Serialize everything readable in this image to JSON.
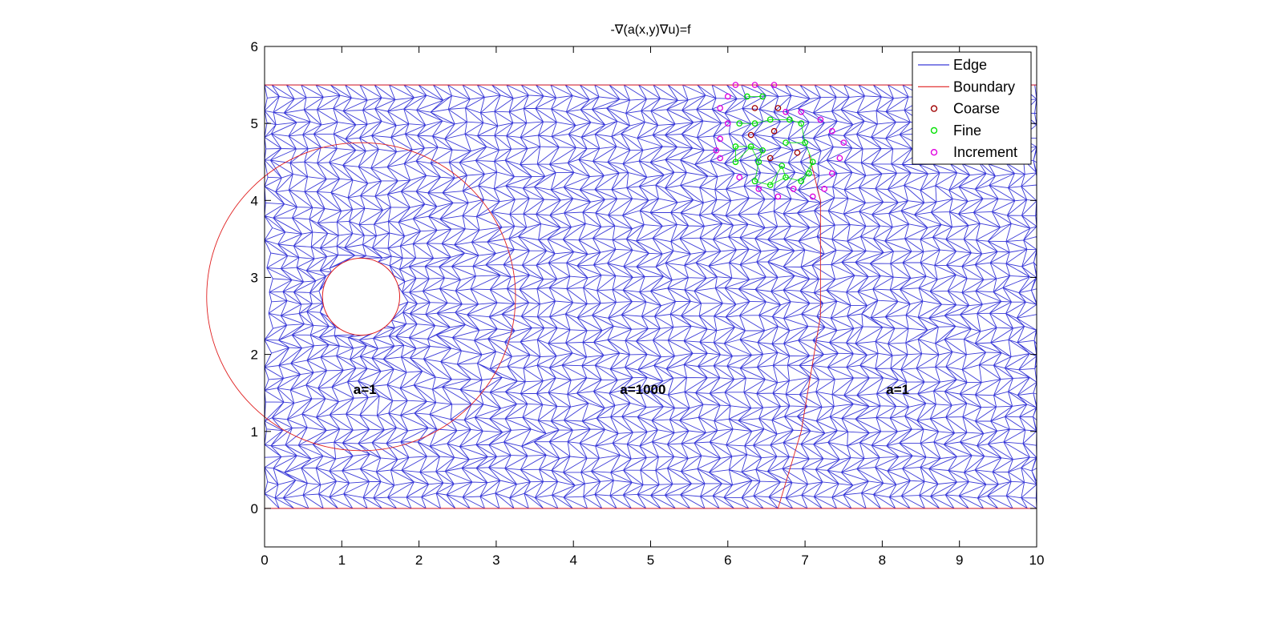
{
  "chart_data": {
    "type": "scatter",
    "title": "-∇(a(x,y)∇u)=f",
    "xlim": [
      0,
      10
    ],
    "ylim": [
      -0.5,
      6
    ],
    "x_ticks": [
      "0",
      "1",
      "2",
      "3",
      "4",
      "5",
      "6",
      "7",
      "8",
      "9",
      "10"
    ],
    "y_ticks": [
      "0",
      "1",
      "2",
      "3",
      "4",
      "5",
      "6"
    ],
    "grid": false,
    "legend_placement": "top-right",
    "legend": [
      {
        "label": "Edge",
        "kind": "line",
        "color": "#3a3ad8"
      },
      {
        "label": "Boundary",
        "kind": "line",
        "color": "#e02020"
      },
      {
        "label": "Coarse",
        "kind": "marker",
        "color": "#a00000"
      },
      {
        "label": "Fine",
        "kind": "marker",
        "color": "#00e000"
      },
      {
        "label": "Increment",
        "kind": "marker",
        "color": "#e000e0"
      }
    ],
    "boundaries": {
      "domain_rect": {
        "xmin": 0,
        "xmax": 10,
        "ymin": 0,
        "ymax": 5.5
      },
      "hole_circle": {
        "cx": 1.25,
        "cy": 2.75,
        "r": 0.5
      },
      "inner_region_circle": {
        "cx": 1.25,
        "cy": 2.75,
        "r": 2.0
      },
      "right_interface_curve": [
        [
          6.65,
          0.0
        ],
        [
          6.95,
          1.0
        ],
        [
          7.2,
          2.5
        ],
        [
          7.2,
          4.0
        ],
        [
          7.05,
          4.6
        ]
      ]
    },
    "region_labels": [
      {
        "text": "a=1",
        "x": 1.3,
        "y": 1.55
      },
      {
        "text": "a=1000",
        "x": 4.9,
        "y": 1.55
      },
      {
        "text": "a=1",
        "x": 8.2,
        "y": 1.55
      }
    ],
    "coarse_points": [
      [
        6.35,
        5.2
      ],
      [
        6.65,
        5.2
      ],
      [
        6.3,
        4.85
      ],
      [
        6.6,
        4.9
      ],
      [
        6.55,
        4.55
      ],
      [
        6.9,
        4.62
      ]
    ],
    "fine_points": [
      [
        6.25,
        5.35
      ],
      [
        6.45,
        5.35
      ],
      [
        6.15,
        5.0
      ],
      [
        6.35,
        5.0
      ],
      [
        6.55,
        5.05
      ],
      [
        6.8,
        5.05
      ],
      [
        6.95,
        5.0
      ],
      [
        6.1,
        4.7
      ],
      [
        6.3,
        4.7
      ],
      [
        6.45,
        4.65
      ],
      [
        6.75,
        4.75
      ],
      [
        7.0,
        4.75
      ],
      [
        6.1,
        4.5
      ],
      [
        6.4,
        4.5
      ],
      [
        6.7,
        4.45
      ],
      [
        7.1,
        4.5
      ],
      [
        6.35,
        4.25
      ],
      [
        6.55,
        4.2
      ],
      [
        6.75,
        4.3
      ],
      [
        6.95,
        4.25
      ],
      [
        7.05,
        4.35
      ]
    ],
    "increment_points": [
      [
        6.1,
        5.5
      ],
      [
        6.35,
        5.5
      ],
      [
        6.6,
        5.5
      ],
      [
        6.0,
        5.35
      ],
      [
        5.9,
        5.2
      ],
      [
        6.0,
        5.0
      ],
      [
        5.9,
        4.8
      ],
      [
        5.9,
        4.55
      ],
      [
        6.15,
        4.3
      ],
      [
        6.4,
        4.15
      ],
      [
        6.65,
        4.05
      ],
      [
        6.85,
        4.15
      ],
      [
        7.1,
        4.05
      ],
      [
        7.25,
        4.15
      ],
      [
        7.35,
        4.35
      ],
      [
        7.45,
        4.55
      ],
      [
        7.5,
        4.75
      ],
      [
        7.35,
        4.9
      ],
      [
        7.2,
        5.05
      ],
      [
        6.95,
        5.15
      ],
      [
        6.75,
        5.15
      ],
      [
        5.85,
        4.65
      ]
    ]
  }
}
